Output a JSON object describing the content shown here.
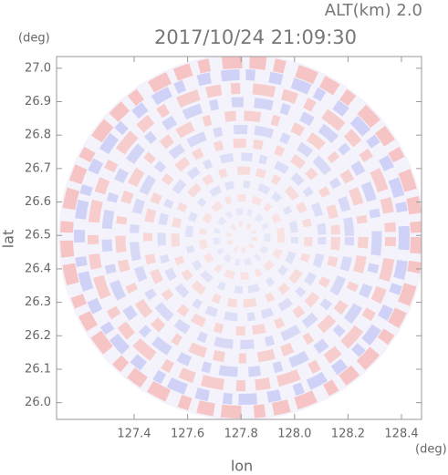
{
  "chart_data": {
    "type": "ppi",
    "title": "2017/10/24 21:09:30",
    "annotation": "ALT(km) 2.0",
    "xlabel": "lon",
    "ylabel": "lat",
    "x_unit": "(deg)",
    "y_unit": "(deg)",
    "xlim": [
      127.11,
      128.475
    ],
    "ylim": [
      25.95,
      27.035
    ],
    "xticks": [
      127.4,
      127.6,
      127.8,
      {
        "value": 128,
        "label": "128.0"
      },
      128.2,
      128.4
    ],
    "yticks": [
      {
        "value": 26,
        "label": "26.0"
      },
      26.1,
      26.2,
      26.3,
      26.4,
      26.5,
      26.6,
      26.7,
      26.8,
      26.9,
      {
        "value": 27,
        "label": "27.0"
      }
    ]
  }
}
